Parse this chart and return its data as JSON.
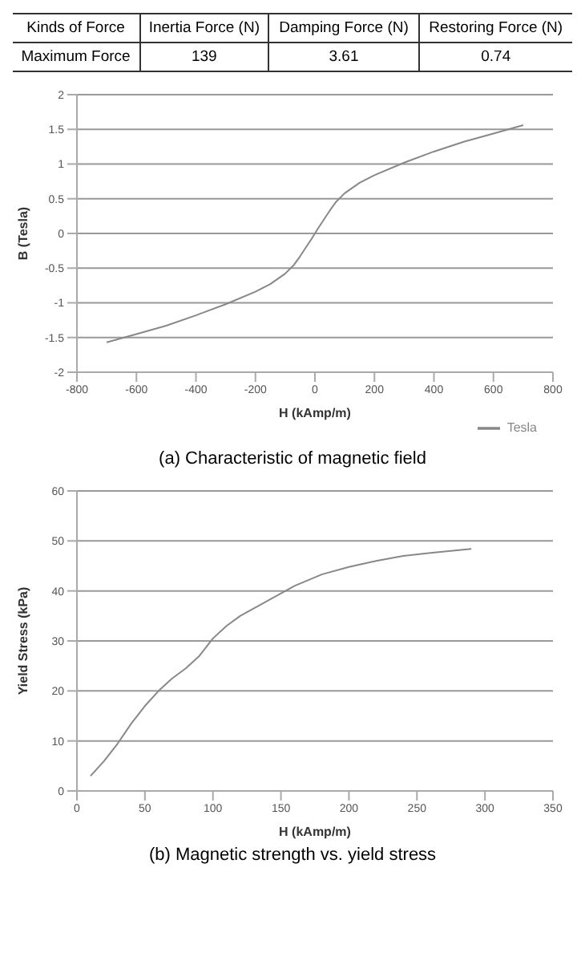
{
  "chart_data": [
    {
      "type": "other",
      "annotations": [
        "Kinds of Force",
        "Inertia Force (N)",
        "Damping Force (N)",
        "Restoring Force (N)",
        "Maximum Force",
        "139",
        "3.61",
        "0.74"
      ]
    },
    {
      "type": "line",
      "title": "(a) Characteristic of magnetic field",
      "xlabel": "H (kAmp/m)",
      "ylabel": "B (Tesla)",
      "x": [
        -700,
        -600,
        -500,
        -400,
        -300,
        -200,
        -150,
        -100,
        -70,
        -50,
        -30,
        -10,
        0,
        10,
        30,
        50,
        70,
        100,
        150,
        200,
        300,
        400,
        500,
        600,
        700
      ],
      "series": [
        {
          "name": "Tesla",
          "color": "#888888",
          "values": [
            -1.57,
            -1.45,
            -1.33,
            -1.18,
            -1.02,
            -0.84,
            -0.73,
            -0.58,
            -0.45,
            -0.33,
            -0.2,
            -0.07,
            0,
            0.07,
            0.2,
            0.33,
            0.45,
            0.58,
            0.73,
            0.84,
            1.02,
            1.18,
            1.32,
            1.44,
            1.56
          ]
        }
      ],
      "xlim": [
        -800,
        800
      ],
      "xticks": [
        -800,
        -600,
        -400,
        -200,
        0,
        200,
        400,
        600,
        800
      ],
      "ylim": [
        -2,
        2
      ],
      "yticks": [
        -2,
        -1.5,
        -1,
        -0.5,
        0,
        0.5,
        1,
        1.5,
        2
      ],
      "grid": "y",
      "legend": "bottom right"
    },
    {
      "type": "line",
      "title": "(b) Magnetic strength vs. yield stress",
      "xlabel": "H (kAmp/m)",
      "ylabel": "Yield Stress (kPa)",
      "x": [
        10,
        20,
        30,
        40,
        50,
        60,
        70,
        80,
        90,
        100,
        110,
        120,
        140,
        160,
        180,
        200,
        220,
        240,
        260,
        290
      ],
      "series": [
        {
          "color": "#888888",
          "values": [
            3,
            6,
            9.5,
            13.5,
            17,
            20,
            22.5,
            24.5,
            27,
            30.5,
            33,
            35,
            38,
            41,
            43.3,
            44.8,
            46,
            47,
            47.6,
            48.4
          ]
        }
      ],
      "xlim": [
        0,
        350
      ],
      "xticks": [
        0,
        50,
        100,
        150,
        200,
        250,
        300,
        350
      ],
      "ylim": [
        0,
        60
      ],
      "yticks": [
        0,
        10,
        20,
        30,
        40,
        50,
        60
      ],
      "grid": "y"
    }
  ]
}
